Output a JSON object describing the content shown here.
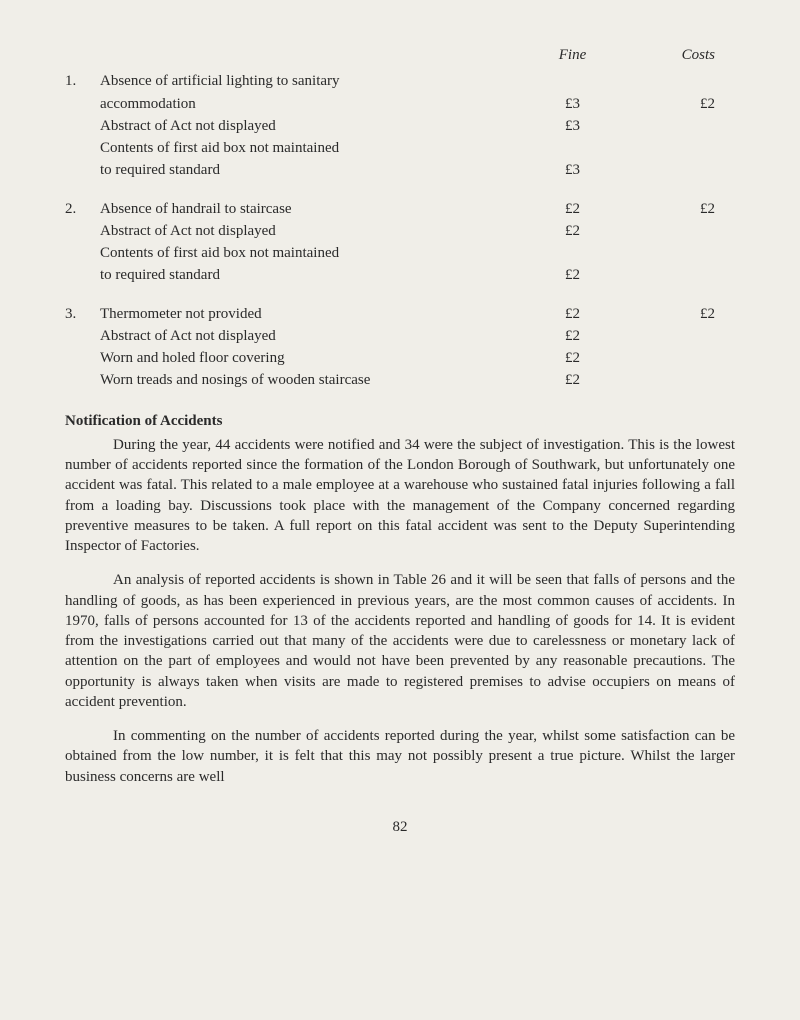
{
  "header": {
    "fine": "Fine",
    "costs": "Costs"
  },
  "groups": [
    {
      "num": "1.",
      "rows": [
        {
          "desc": "Absence of artificial lighting to sanitary",
          "fine": "",
          "costs": ""
        },
        {
          "desc": "accommodation",
          "fine": "£3",
          "costs": "£2"
        },
        {
          "desc": "Abstract of Act not displayed",
          "fine": "£3",
          "costs": ""
        },
        {
          "desc": "Contents of first aid box not maintained",
          "fine": "",
          "costs": ""
        },
        {
          "desc": "to required standard",
          "fine": "£3",
          "costs": ""
        }
      ]
    },
    {
      "num": "2.",
      "rows": [
        {
          "desc": "Absence of handrail to staircase",
          "fine": "£2",
          "costs": "£2"
        },
        {
          "desc": "Abstract of Act not displayed",
          "fine": "£2",
          "costs": ""
        },
        {
          "desc": "Contents of first aid box not maintained",
          "fine": "",
          "costs": ""
        },
        {
          "desc": "to required standard",
          "fine": "£2",
          "costs": ""
        }
      ]
    },
    {
      "num": "3.",
      "rows": [
        {
          "desc": "Thermometer not provided",
          "fine": "£2",
          "costs": "£2"
        },
        {
          "desc": "Abstract of Act not displayed",
          "fine": "£2",
          "costs": ""
        },
        {
          "desc": "Worn and holed floor covering",
          "fine": "£2",
          "costs": ""
        },
        {
          "desc": "Worn treads and nosings of wooden staircase",
          "fine": "£2",
          "costs": ""
        }
      ]
    }
  ],
  "section_heading": "Notification of Accidents",
  "paragraphs": [
    "During the year, 44 accidents were notified and 34 were the subject of investigation. This is the lowest number of accidents reported since the formation of the London Borough of Southwark, but unfortunately one accident was fatal. This related to a male employee at a warehouse who sustained fatal injuries following a fall from a loading bay. Discussions took place with the management of the Company concerned regarding preventive measures to be taken. A full report on this fatal accident was sent to the Deputy Superintending Inspector of Factories.",
    "An analysis of reported accidents is shown in Table 26 and it will be seen that falls of persons and the handling of goods, as has been experienced in previous years, are the most common causes of accidents. In 1970, falls of persons accounted for 13 of the accidents reported and handling of goods for 14. It is evident from the investigations carried out that many of the accidents were due to carelessness or monetary lack of attention on the part of employees and would not have been prevented by any reasonable precautions. The opportunity is always taken when visits are made to registered premises to advise occupiers on means of accident prevention.",
    "In commenting on the number of accidents reported during the year, whilst some satisfaction can be obtained from the low number, it is felt that this may not possibly present a true picture. Whilst the larger business concerns are well"
  ],
  "page_number": "82"
}
